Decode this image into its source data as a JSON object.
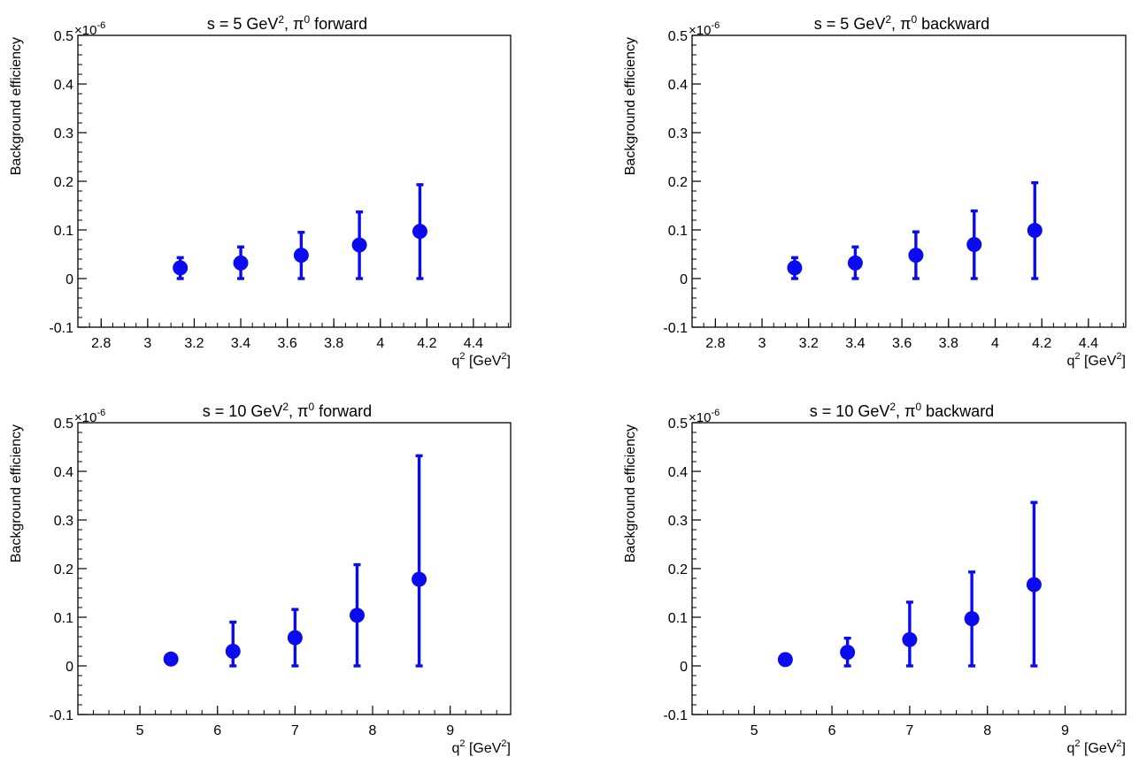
{
  "colors": {
    "marker": "#0b0bf0",
    "axis": "#000000",
    "background": "#ffffff"
  },
  "chart_data": [
    {
      "type": "scatter",
      "title": {
        "prefix": "s =  5 GeV",
        "sup": "2",
        "mid": ", π",
        "sup2": "0",
        "suffix": " forward"
      },
      "ylabel": "Background efficiency",
      "xlabel": {
        "prefix": "q",
        "sup": "2",
        "mid": " [GeV",
        "sup2": "2",
        "suffix": "]"
      },
      "yscale_label": {
        "base": "×10",
        "exp": "-6"
      },
      "xlim": [
        2.7,
        4.56
      ],
      "ylim": [
        -0.1,
        0.5
      ],
      "xticks": [
        "2.8",
        "3",
        "3.2",
        "3.4",
        "3.6",
        "3.8",
        "4",
        "4.2",
        "4.4"
      ],
      "xtick_values": [
        2.8,
        3.0,
        3.2,
        3.4,
        3.6,
        3.8,
        4.0,
        4.2,
        4.4
      ],
      "yticks": [
        "-0.1",
        "0",
        "0.1",
        "0.2",
        "0.3",
        "0.4",
        "0.5"
      ],
      "ytick_values": [
        -0.1,
        0,
        0.1,
        0.2,
        0.3,
        0.4,
        0.5
      ],
      "x_minor_step": 0.05,
      "y_minor_step": 0.02,
      "points": [
        {
          "x": 3.14,
          "y": 0.022,
          "lo": 0.0,
          "hi": 0.043
        },
        {
          "x": 3.4,
          "y": 0.032,
          "lo": 0.0,
          "hi": 0.065
        },
        {
          "x": 3.66,
          "y": 0.048,
          "lo": 0.0,
          "hi": 0.095
        },
        {
          "x": 3.91,
          "y": 0.069,
          "lo": 0.0,
          "hi": 0.137
        },
        {
          "x": 4.17,
          "y": 0.097,
          "lo": 0.0,
          "hi": 0.193
        }
      ]
    },
    {
      "type": "scatter",
      "title": {
        "prefix": "s =  5 GeV",
        "sup": "2",
        "mid": ", π",
        "sup2": "0",
        "suffix": " backward"
      },
      "ylabel": "Background efficiency",
      "xlabel": {
        "prefix": "q",
        "sup": "2",
        "mid": " [GeV",
        "sup2": "2",
        "suffix": "]"
      },
      "yscale_label": {
        "base": "×10",
        "exp": "-6"
      },
      "xlim": [
        2.7,
        4.56
      ],
      "ylim": [
        -0.1,
        0.5
      ],
      "xticks": [
        "2.8",
        "3",
        "3.2",
        "3.4",
        "3.6",
        "3.8",
        "4",
        "4.2",
        "4.4"
      ],
      "xtick_values": [
        2.8,
        3.0,
        3.2,
        3.4,
        3.6,
        3.8,
        4.0,
        4.2,
        4.4
      ],
      "yticks": [
        "-0.1",
        "0",
        "0.1",
        "0.2",
        "0.3",
        "0.4",
        "0.5"
      ],
      "ytick_values": [
        -0.1,
        0,
        0.1,
        0.2,
        0.3,
        0.4,
        0.5
      ],
      "x_minor_step": 0.05,
      "y_minor_step": 0.02,
      "points": [
        {
          "x": 3.14,
          "y": 0.022,
          "lo": 0.0,
          "hi": 0.043
        },
        {
          "x": 3.4,
          "y": 0.032,
          "lo": 0.0,
          "hi": 0.065
        },
        {
          "x": 3.66,
          "y": 0.048,
          "lo": 0.0,
          "hi": 0.096
        },
        {
          "x": 3.91,
          "y": 0.07,
          "lo": 0.0,
          "hi": 0.139
        },
        {
          "x": 4.17,
          "y": 0.099,
          "lo": 0.0,
          "hi": 0.197
        }
      ]
    },
    {
      "type": "scatter",
      "title": {
        "prefix": "s =  10 GeV",
        "sup": "2",
        "mid": ", π",
        "sup2": "0",
        "suffix": " forward"
      },
      "ylabel": "Background efficiency",
      "xlabel": {
        "prefix": "q",
        "sup": "2",
        "mid": " [GeV",
        "sup2": "2",
        "suffix": "]"
      },
      "yscale_label": {
        "base": "×10",
        "exp": "-6"
      },
      "xlim": [
        4.2,
        9.78
      ],
      "ylim": [
        -0.1,
        0.5
      ],
      "xticks": [
        "5",
        "6",
        "7",
        "8",
        "9"
      ],
      "xtick_values": [
        5,
        6,
        7,
        8,
        9
      ],
      "yticks": [
        "-0.1",
        "0",
        "0.1",
        "0.2",
        "0.3",
        "0.4",
        "0.5"
      ],
      "ytick_values": [
        -0.1,
        0,
        0.1,
        0.2,
        0.3,
        0.4,
        0.5
      ],
      "x_minor_step": 0.2,
      "y_minor_step": 0.02,
      "points": [
        {
          "x": 5.4,
          "y": 0.014,
          "lo": 0.014,
          "hi": 0.014
        },
        {
          "x": 6.2,
          "y": 0.03,
          "lo": 0.0,
          "hi": 0.09
        },
        {
          "x": 7.0,
          "y": 0.058,
          "lo": 0.0,
          "hi": 0.116
        },
        {
          "x": 7.8,
          "y": 0.104,
          "lo": 0.0,
          "hi": 0.208
        },
        {
          "x": 8.6,
          "y": 0.178,
          "lo": 0.0,
          "hi": 0.432
        }
      ]
    },
    {
      "type": "scatter",
      "title": {
        "prefix": "s =  10 GeV",
        "sup": "2",
        "mid": ", π",
        "sup2": "0",
        "suffix": " backward"
      },
      "ylabel": "Background efficiency",
      "xlabel": {
        "prefix": "q",
        "sup": "2",
        "mid": " [GeV",
        "sup2": "2",
        "suffix": "]"
      },
      "yscale_label": {
        "base": "×10",
        "exp": "-6"
      },
      "xlim": [
        4.2,
        9.78
      ],
      "ylim": [
        -0.1,
        0.5
      ],
      "xticks": [
        "5",
        "6",
        "7",
        "8",
        "9"
      ],
      "xtick_values": [
        5,
        6,
        7,
        8,
        9
      ],
      "yticks": [
        "-0.1",
        "0",
        "0.1",
        "0.2",
        "0.3",
        "0.4",
        "0.5"
      ],
      "ytick_values": [
        -0.1,
        0,
        0.1,
        0.2,
        0.3,
        0.4,
        0.5
      ],
      "x_minor_step": 0.2,
      "y_minor_step": 0.02,
      "points": [
        {
          "x": 5.4,
          "y": 0.013,
          "lo": 0.013,
          "hi": 0.013
        },
        {
          "x": 6.2,
          "y": 0.028,
          "lo": 0.0,
          "hi": 0.057
        },
        {
          "x": 7.0,
          "y": 0.054,
          "lo": 0.0,
          "hi": 0.131
        },
        {
          "x": 7.8,
          "y": 0.097,
          "lo": 0.0,
          "hi": 0.193
        },
        {
          "x": 8.6,
          "y": 0.167,
          "lo": 0.0,
          "hi": 0.336
        }
      ]
    }
  ]
}
